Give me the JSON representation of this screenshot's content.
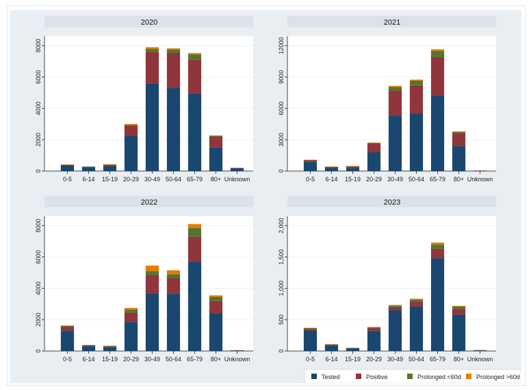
{
  "chart_data": {
    "type": "stacked-bar",
    "categories": [
      "0-5",
      "6-14",
      "15-19",
      "20-29",
      "30-49",
      "50-64",
      "65-79",
      "80+",
      "Unknown"
    ],
    "legend": [
      {
        "name": "Tested",
        "color": "#1a476f"
      },
      {
        "name": "Positive",
        "color": "#90353b"
      },
      {
        "name": "Prolonged <60d",
        "color": "#55752f"
      },
      {
        "name": "Prolonged >60d",
        "color": "#e37e00"
      }
    ],
    "legend_position": "bottom-right",
    "panels": [
      {
        "title": "2020",
        "ylim": [
          0,
          8600
        ],
        "yticks": [
          0,
          2000,
          4000,
          6000,
          8000
        ],
        "ytick_labels": [
          "0",
          "2000",
          "4000",
          "6000",
          "8000"
        ],
        "series": [
          {
            "name": "Tested",
            "values": [
              350,
              250,
              320,
              2250,
              5600,
              5300,
              4950,
              1500,
              180
            ]
          },
          {
            "name": "Positive",
            "values": [
              50,
              30,
              80,
              650,
              2000,
              2250,
              2150,
              700,
              20
            ]
          },
          {
            "name": "Prolonged <60d",
            "values": [
              10,
              10,
              20,
              50,
              200,
              200,
              350,
              50,
              0
            ]
          },
          {
            "name": "Prolonged >60d",
            "values": [
              10,
              0,
              10,
              50,
              100,
              80,
              80,
              20,
              0
            ]
          }
        ]
      },
      {
        "title": "2021",
        "ylim": [
          0,
          12900
        ],
        "yticks": [
          0,
          3000,
          6000,
          9000,
          12000
        ],
        "ytick_labels": [
          "0",
          "3000",
          "6000",
          "9000",
          "12000"
        ],
        "series": [
          {
            "name": "Tested",
            "values": [
              900,
              300,
              300,
              1800,
              5300,
              5500,
              7200,
              2400,
              30
            ]
          },
          {
            "name": "Positive",
            "values": [
              150,
              100,
              150,
              850,
              2400,
              2700,
              3700,
              1250,
              20
            ]
          },
          {
            "name": "Prolonged <60d",
            "values": [
              20,
              20,
              20,
              50,
              350,
              450,
              600,
              100,
              0
            ]
          },
          {
            "name": "Prolonged >60d",
            "values": [
              10,
              10,
              10,
              20,
              100,
              100,
              150,
              50,
              0
            ]
          }
        ]
      },
      {
        "title": "2022",
        "ylim": [
          0,
          8600
        ],
        "yticks": [
          0,
          2000,
          4000,
          6000,
          8000
        ],
        "ytick_labels": [
          "0",
          "2000",
          "4000",
          "6000",
          "8000"
        ],
        "series": [
          {
            "name": "Tested",
            "values": [
              1300,
              300,
              250,
              1850,
              3700,
              3650,
              5700,
              2400,
              30
            ]
          },
          {
            "name": "Positive",
            "values": [
              250,
              50,
              50,
              600,
              1150,
              1000,
              1600,
              800,
              20
            ]
          },
          {
            "name": "Prolonged <60d",
            "values": [
              50,
              20,
              20,
              200,
              250,
              250,
              550,
              250,
              0
            ]
          },
          {
            "name": "Prolonged >60d",
            "values": [
              30,
              20,
              20,
              100,
              350,
              250,
              250,
              100,
              0
            ]
          }
        ]
      },
      {
        "title": "2023",
        "ylim": [
          0,
          2150
        ],
        "yticks": [
          0,
          500,
          1000,
          1500,
          2000
        ],
        "ytick_labels": [
          "0",
          "500",
          "1,000",
          "1,500",
          "2,000"
        ],
        "series": [
          {
            "name": "Tested",
            "values": [
              330,
              90,
              40,
              320,
              650,
              710,
              1480,
              580,
              10
            ]
          },
          {
            "name": "Positive",
            "values": [
              25,
              10,
              5,
              40,
              50,
              80,
              150,
              90,
              5
            ]
          },
          {
            "name": "Prolonged <60d",
            "values": [
              10,
              5,
              5,
              15,
              20,
              30,
              70,
              40,
              0
            ]
          },
          {
            "name": "Prolonged >60d",
            "values": [
              5,
              5,
              0,
              10,
              15,
              15,
              30,
              10,
              0
            ]
          }
        ]
      }
    ]
  }
}
